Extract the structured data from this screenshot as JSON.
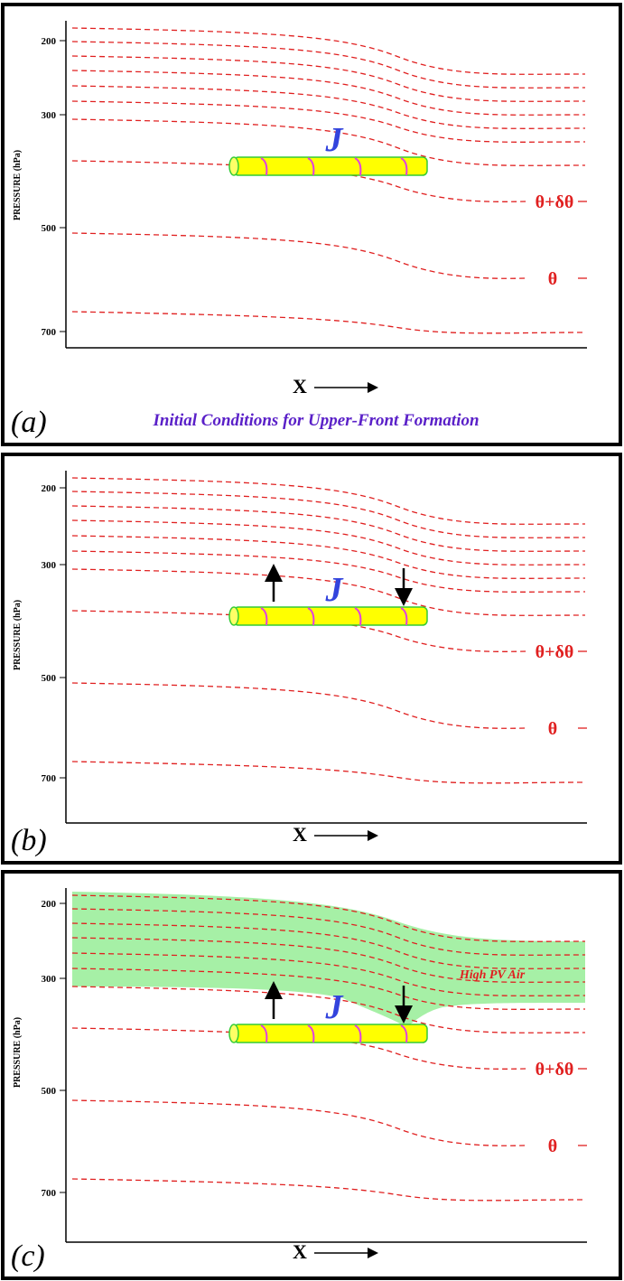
{
  "panels": [
    {
      "y_axis_label": "PRESSURE (hPa)",
      "y_ticks": [
        "200",
        "300",
        "500",
        "700"
      ],
      "jet_label": "J",
      "isentrope_labels": [
        "θ+δθ",
        "θ"
      ],
      "x_axis_label": "X",
      "label": "(a)",
      "caption": "Initial Conditions for Upper-Front Formation"
    },
    {
      "y_axis_label": "PRESSURE (hPa)",
      "y_ticks": [
        "200",
        "300",
        "500",
        "700"
      ],
      "jet_label": "J",
      "isentrope_labels": [
        "θ+δθ",
        "θ"
      ],
      "x_axis_label": "X",
      "label": "(b)"
    },
    {
      "y_axis_label": "PRESSURE (hPa)",
      "y_ticks": [
        "200",
        "300",
        "500",
        "700"
      ],
      "jet_label": "J",
      "isentrope_labels": [
        "θ+δθ",
        "θ"
      ],
      "x_axis_label": "X",
      "label": "(c)",
      "region_label": "High PV Air"
    }
  ]
}
